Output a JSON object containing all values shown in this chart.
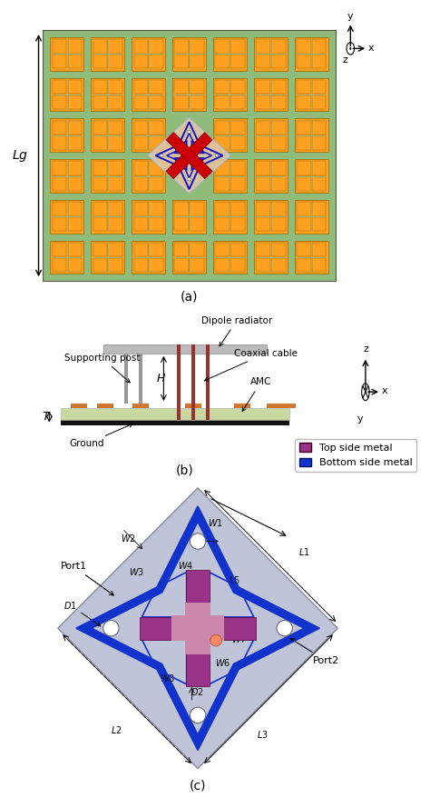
{
  "fig_width": 4.74,
  "fig_height": 8.89,
  "bg_color": "#ffffff",
  "panel_a": {
    "ground_color": "#8fbc7a",
    "patch_color": "#ffa020",
    "patch_border": "#996600",
    "dipole_blue": "#1111cc",
    "dipole_red": "#cc0000",
    "dipole_gray_face": "#cccccc",
    "dipole_gray_edge": "#aaaaaa",
    "white_dot": "#ffffff",
    "lg_label": "$Lg$",
    "title": "(a)"
  },
  "panel_b": {
    "ground_color": "#111111",
    "amc_substrate": "#c8d8a0",
    "amc_patch_color": "#cc7733",
    "dipole_bar_color": "#bbbbbb",
    "dipole_bar_edge": "#888888",
    "post_color": "#999999",
    "cable_color": "#993333",
    "labels": [
      "Supporting post",
      "Dipole radiator",
      "Coaxial cable",
      "AMC",
      "Ground"
    ],
    "title": "(b)"
  },
  "panel_c": {
    "substrate_color": "#c0c4d8",
    "blue_metal": "#1133cc",
    "purple_metal": "#993388",
    "pink_light": "#cc88aa",
    "hole_color": "#ffffff",
    "legend_labels": [
      "Top side metal",
      "Bottom side metal"
    ],
    "legend_colors": [
      "#993388",
      "#1133cc"
    ],
    "title": "(c)"
  }
}
